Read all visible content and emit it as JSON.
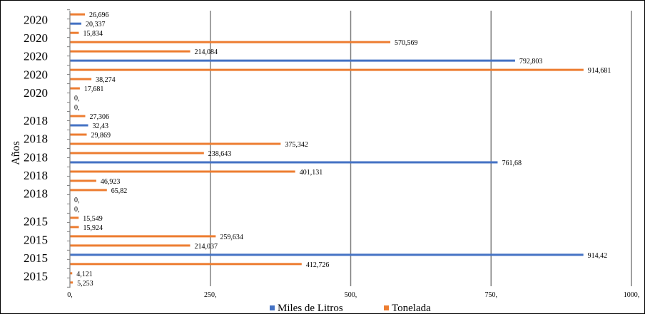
{
  "chart_data": {
    "type": "bar",
    "orientation": "horizontal",
    "ylabel": "Años",
    "xlabel": "",
    "xlim": [
      0,
      1000
    ],
    "x_ticks": [
      "0,",
      "250,",
      "500,",
      "750,",
      "1000,"
    ],
    "grid": true,
    "legend_position": "bottom",
    "colors": {
      "Miles de Litros": "#4472C4",
      "Tonelada": "#ED7D31"
    },
    "legend": [
      {
        "name": "Miles de Litros",
        "color": "#4472C4"
      },
      {
        "name": "Tonelada",
        "color": "#ED7D31"
      }
    ],
    "categories": [
      "2020",
      "2020",
      "2020",
      "2020",
      "2020",
      "2018",
      "2018",
      "2018",
      "2018",
      "2018",
      "2015",
      "2015",
      "2015",
      "2015"
    ],
    "bars": [
      {
        "series": "Tonelada",
        "value": 26.696,
        "label": "26,696"
      },
      {
        "series": "Miles de Litros",
        "value": 20.337,
        "label": "20,337"
      },
      {
        "series": "Tonelada",
        "value": 15.834,
        "label": "15,834"
      },
      {
        "series": "Tonelada",
        "value": 570.569,
        "label": "570,569"
      },
      {
        "series": "Tonelada",
        "value": 214.084,
        "label": "214,084"
      },
      {
        "series": "Miles de Litros",
        "value": 792.803,
        "label": "792,803"
      },
      {
        "series": "Tonelada",
        "value": 914.681,
        "label": "914,681"
      },
      {
        "series": "Tonelada",
        "value": 38.274,
        "label": "38,274"
      },
      {
        "series": "Tonelada",
        "value": 17.681,
        "label": "17,681"
      },
      {
        "series": "Tonelada",
        "value": 0,
        "label": "0,"
      },
      {
        "series": "Miles de Litros",
        "value": 0,
        "label": "0,"
      },
      {
        "series": "Tonelada",
        "value": 27.306,
        "label": "27,306"
      },
      {
        "series": "Miles de Litros",
        "value": 32.43,
        "label": "32,43"
      },
      {
        "series": "Tonelada",
        "value": 29.869,
        "label": "29,869"
      },
      {
        "series": "Tonelada",
        "value": 375.342,
        "label": "375,342"
      },
      {
        "series": "Tonelada",
        "value": 238.643,
        "label": "238,643"
      },
      {
        "series": "Miles de Litros",
        "value": 761.68,
        "label": "761,68"
      },
      {
        "series": "Tonelada",
        "value": 401.131,
        "label": "401,131"
      },
      {
        "series": "Tonelada",
        "value": 46.923,
        "label": "46,923"
      },
      {
        "series": "Tonelada",
        "value": 65.82,
        "label": "65,82"
      },
      {
        "series": "Tonelada",
        "value": 0,
        "label": "0,"
      },
      {
        "series": "Miles de Litros",
        "value": 0,
        "label": "0,"
      },
      {
        "series": "Tonelada",
        "value": 15.549,
        "label": "15,549"
      },
      {
        "series": "Tonelada",
        "value": 15.924,
        "label": "15,924"
      },
      {
        "series": "Tonelada",
        "value": 259.634,
        "label": "259,634"
      },
      {
        "series": "Tonelada",
        "value": 214.037,
        "label": "214,037"
      },
      {
        "series": "Miles de Litros",
        "value": 914.42,
        "label": "914,42"
      },
      {
        "series": "Tonelada",
        "value": 412.726,
        "label": "412,726"
      },
      {
        "series": "Tonelada",
        "value": 4.121,
        "label": "4,121"
      },
      {
        "series": "Tonelada",
        "value": 5.253,
        "label": "5,253"
      }
    ]
  }
}
